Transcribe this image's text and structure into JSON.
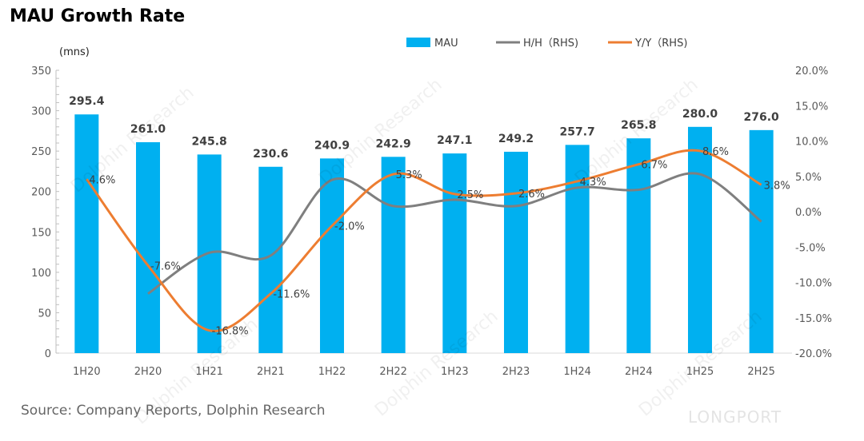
{
  "chart_data": {
    "type": "bar",
    "title": "MAU Growth Rate",
    "ylabel": "(mns)",
    "source": "Source: Company Reports, Dolphin Research",
    "watermark": "Dolphin Research",
    "logo": "LONGPORT",
    "categories": [
      "1H20",
      "2H20",
      "1H21",
      "2H21",
      "1H22",
      "2H22",
      "1H23",
      "2H23",
      "1H24",
      "2H24",
      "1H25",
      "2H25"
    ],
    "ylim": [
      0,
      350
    ],
    "yticks": [
      0,
      50,
      100,
      150,
      200,
      250,
      300,
      350
    ],
    "y2lim": [
      -20,
      20
    ],
    "y2ticks": [
      "-20.0%",
      "-15.0%",
      "-10.0%",
      "-5.0%",
      "0.0%",
      "5.0%",
      "10.0%",
      "15.0%",
      "20.0%"
    ],
    "colors": {
      "MAU": "#00b0f0",
      "H/H": "#7f7f7f",
      "Y/Y": "#ed7d31"
    },
    "series": [
      {
        "name": "MAU",
        "type": "bar",
        "axis": "left",
        "values": [
          295.4,
          261.0,
          245.8,
          230.6,
          240.9,
          242.9,
          247.1,
          249.2,
          257.7,
          265.8,
          280.0,
          276.0
        ],
        "labels": [
          "295.4",
          "261.0",
          "245.8",
          "230.6",
          "240.9",
          "242.9",
          "247.1",
          "249.2",
          "257.7",
          "265.8",
          "280.0",
          "276.0"
        ]
      },
      {
        "name": "H/H（RHS)",
        "type": "line",
        "axis": "right",
        "values": [
          null,
          -11.6,
          -5.8,
          -6.2,
          4.5,
          0.8,
          1.7,
          0.8,
          3.4,
          3.1,
          5.3,
          -1.4
        ]
      },
      {
        "name": "Y/Y（RHS)",
        "type": "line",
        "axis": "right",
        "values": [
          4.6,
          -7.6,
          -16.8,
          -11.6,
          -2.0,
          5.3,
          2.5,
          2.6,
          4.3,
          6.7,
          8.6,
          3.8
        ],
        "labels": [
          "4.6%",
          "-7.6%",
          "-16.8%",
          "-11.6%",
          "-2.0%",
          "5.3%",
          "2.5%",
          "2.6%",
          "4.3%",
          "6.7%",
          "8.6%",
          "3.8%"
        ]
      }
    ],
    "legend": "top-center"
  }
}
